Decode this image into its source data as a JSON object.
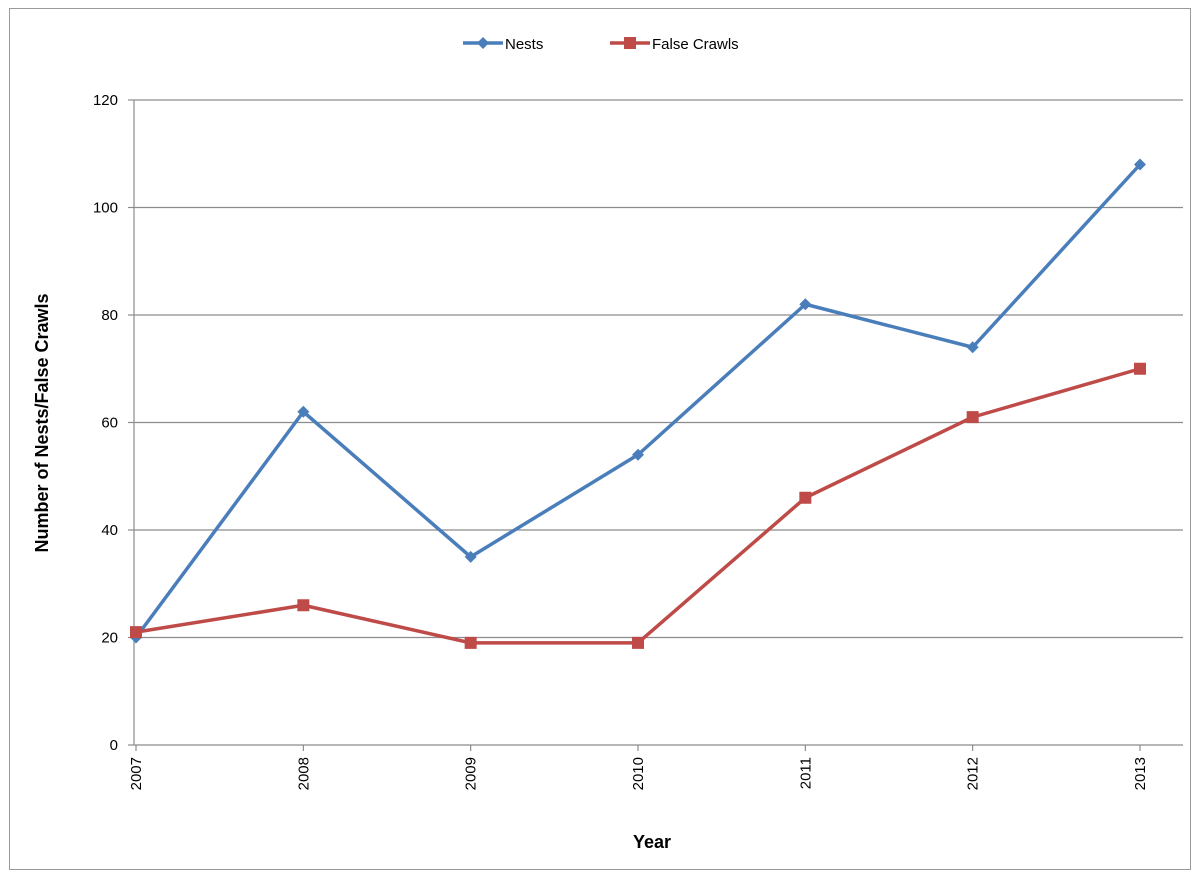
{
  "chart_data": {
    "type": "line",
    "title": "",
    "xlabel": "Year",
    "ylabel": "Number of Nests/False Crawls",
    "categories": [
      "2007",
      "2008",
      "2009",
      "2010",
      "2011",
      "2012",
      "2013"
    ],
    "ylim": [
      0,
      120
    ],
    "yticks": [
      0,
      20,
      40,
      60,
      80,
      100,
      120
    ],
    "grid": true,
    "legend_position": "top",
    "series": [
      {
        "name": "Nests",
        "color": "#4a7ebb",
        "marker": "diamond",
        "values": [
          20,
          62,
          35,
          54,
          82,
          74,
          108
        ]
      },
      {
        "name": "False Crawls",
        "color": "#be4b48",
        "marker": "square",
        "values": [
          21,
          26,
          19,
          19,
          46,
          61,
          70
        ]
      }
    ]
  }
}
